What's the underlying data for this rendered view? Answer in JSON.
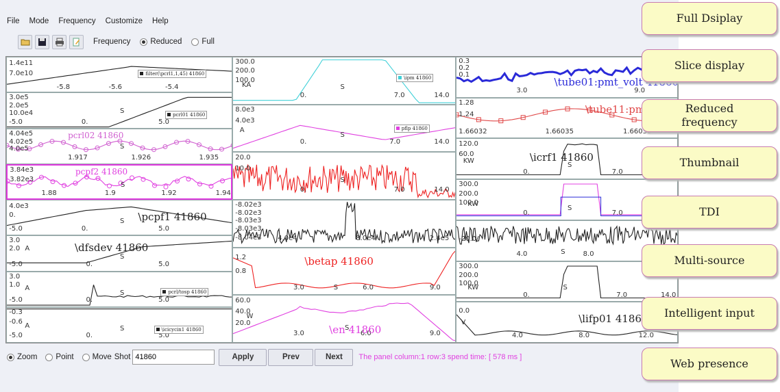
{
  "menu": [
    "File",
    "Mode",
    "Frequency",
    "Customize",
    "Help"
  ],
  "toolbar": {
    "icons": [
      "open-folder-icon",
      "save-disk-icon",
      "print-icon",
      "edit-page-icon"
    ],
    "frequency_label": "Frequency",
    "options": [
      {
        "label": "Reduced",
        "selected": true
      },
      {
        "label": "Full",
        "selected": false
      }
    ]
  },
  "columns": [
    [
      {
        "ticks": [
          "1.4e11",
          "7.0e10",
          "-5.8",
          "-5.6",
          "-5.4"
        ],
        "legend": "filter(\\pcrl1,1,45) 41860",
        "color": "#222222"
      },
      {
        "ticks": [
          "3.0e5",
          "2.0e5",
          "10.0e4",
          "-5.0",
          "0.",
          "S",
          "5.0"
        ],
        "legend": "pcrl01 41860",
        "color": "#222222"
      },
      {
        "ticks": [
          "4.04e5",
          "4.02e5",
          "4.0e5",
          "1.917",
          "1.926",
          "1.935",
          "S"
        ],
        "title": "pcrl02        41860",
        "color": "#d060d0"
      },
      {
        "ticks": [
          "3.84e3",
          "3.82e3",
          "1.88",
          "1.9",
          "1.92",
          "1.94",
          "S"
        ],
        "title": "pcpf2        41860",
        "color": "#e040e0",
        "selected": true
      },
      {
        "ticks": [
          "4.0e3",
          "0.",
          "-5.0",
          "0.",
          "S",
          "5.0"
        ],
        "title": "\\pcpf1 41860",
        "color": "#222222"
      },
      {
        "ticks": [
          "3.0",
          "2.0",
          "-5.0",
          "0.",
          "5.0",
          "S",
          "A"
        ],
        "title": "\\dfsdev 41860",
        "color": "#222222"
      },
      {
        "ticks": [
          "3.0",
          "1.0",
          "-5.0",
          "0.",
          "S",
          "5.0",
          "A"
        ],
        "legend": "pcrl/tosp 41860",
        "color": "#222222"
      },
      {
        "ticks": [
          "-0.3",
          "-0.6",
          "-5.0",
          "0.",
          "S",
          "5.0",
          "A"
        ],
        "legend": "\\icicycin1 41860",
        "color": "#222222"
      }
    ],
    [
      {
        "ticks": [
          "300.0",
          "200.0",
          "100.0",
          "KA",
          "0.",
          "S",
          "7.0",
          "14.0"
        ],
        "legend": "\\ipm 41860",
        "color": "#40d0d8"
      },
      {
        "ticks": [
          "8.0e3",
          "4.0e3",
          "A",
          "0.",
          "S",
          "7.0",
          "14.0"
        ],
        "legend": "pflp 41860",
        "color": "#e040e0"
      },
      {
        "ticks": [
          "20.0",
          "10.0",
          "0.",
          "S",
          "7.0",
          "14.0"
        ],
        "color": "#ee2222"
      },
      {
        "ticks": [
          "-8.02e3",
          "-8.02e3",
          "-8.03e3",
          "-8.03e3",
          "-8.04e3",
          "4.0e4",
          "8.0e4",
          "2.4e5"
        ],
        "color": "#222222"
      },
      {
        "ticks": [
          "1.2",
          "0.8",
          "3.0",
          "S",
          "6.0",
          "9.0"
        ],
        "title": "\\betap 41860",
        "color": "#ee2222"
      },
      {
        "ticks": [
          "60.0",
          "40.0",
          "20.0",
          "3.0",
          "6.0",
          "9.0",
          "S",
          "W"
        ],
        "title": "\\en 41860",
        "color": "#e040e0"
      }
    ],
    [
      {
        "ticks": [
          "0.3",
          "0.2",
          "0.1",
          "3.0",
          "9.0"
        ],
        "title": "\\tube01:pmt_volt 41860",
        "color": "#2a2ad8"
      },
      {
        "ticks": [
          "1.28",
          "1.24",
          "1.66032",
          "1.66035",
          "1.66038"
        ],
        "title": "\\tube11:pmt",
        "color": "#e04848"
      },
      {
        "ticks": [
          "120.0",
          "60.0",
          "KW",
          "0.",
          "S",
          "7.0"
        ],
        "title": "\\icrf1 41860",
        "color": "#222222"
      },
      {
        "ticks": [
          "300.0",
          "200.0",
          "100.0",
          "KW",
          "0.",
          "S",
          "7.0"
        ],
        "color": "#e040e0"
      },
      {
        "ticks": [
          "-20.0",
          "V",
          "4.0",
          "S",
          "8.0",
          "12."
        ],
        "color": "#222222"
      },
      {
        "ticks": [
          "300.0",
          "200.0",
          "100.0",
          "KW",
          "0.",
          "S",
          "7.0",
          "14.0"
        ],
        "color": "#222222"
      },
      {
        "ticks": [
          "0.0",
          "V",
          "4.0",
          "8.0",
          "12.0"
        ],
        "title": "\\lifp01 4186",
        "color": "#222222"
      }
    ]
  ],
  "bottom": {
    "modes": [
      {
        "label": "Zoom",
        "selected": true
      },
      {
        "label": "Point",
        "selected": false
      },
      {
        "label": "Move",
        "selected": false
      }
    ],
    "shot_label": "Shot",
    "shot_value": "41860",
    "apply": "Apply",
    "prev": "Prev",
    "next": "Next",
    "status": "The panel column:1 row:3 spend time: [ 578 ms ]"
  },
  "features": [
    "Full Dsiplay",
    "Slice display",
    "Reduced frequency",
    "Thumbnail",
    "TDI",
    "Multi-source",
    "Intelligent input",
    "Web presence"
  ]
}
